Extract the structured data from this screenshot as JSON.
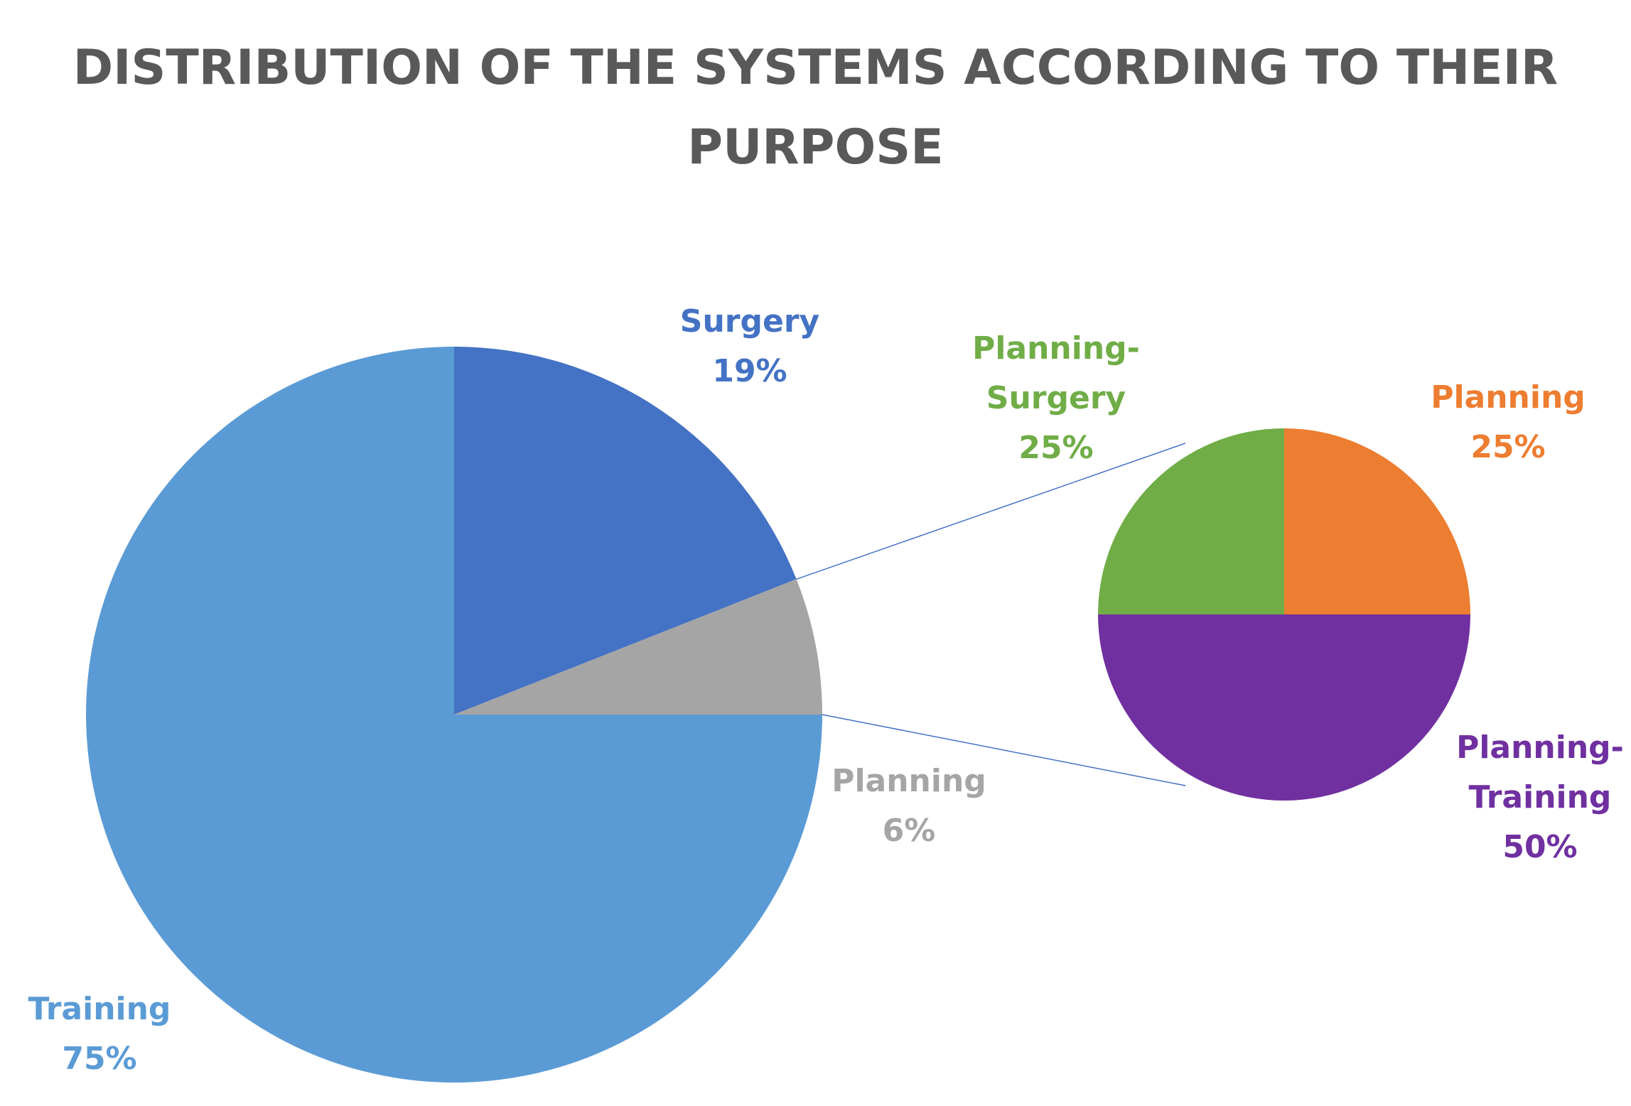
{
  "chart_data": [
    {
      "type": "pie",
      "title": "DISTRIBUTION OF THE SYSTEMS ACCORDING TO THEIR PURPOSE",
      "categories": [
        "Surgery",
        "Planning",
        "Training"
      ],
      "values": [
        19,
        6,
        75
      ],
      "value_labels": [
        "19%",
        "6%",
        "75%"
      ],
      "colors": [
        "#4472c4",
        "#a5a5a5",
        "#5b9bd5"
      ]
    },
    {
      "type": "pie",
      "categories": [
        "Planning",
        "Planning-Training",
        "Planning-Surgery"
      ],
      "values": [
        25,
        50,
        25
      ],
      "value_labels": [
        "25%",
        "50%",
        "25%"
      ],
      "colors": [
        "#ed7d31",
        "#7030a0",
        "#70ad47"
      ]
    }
  ]
}
